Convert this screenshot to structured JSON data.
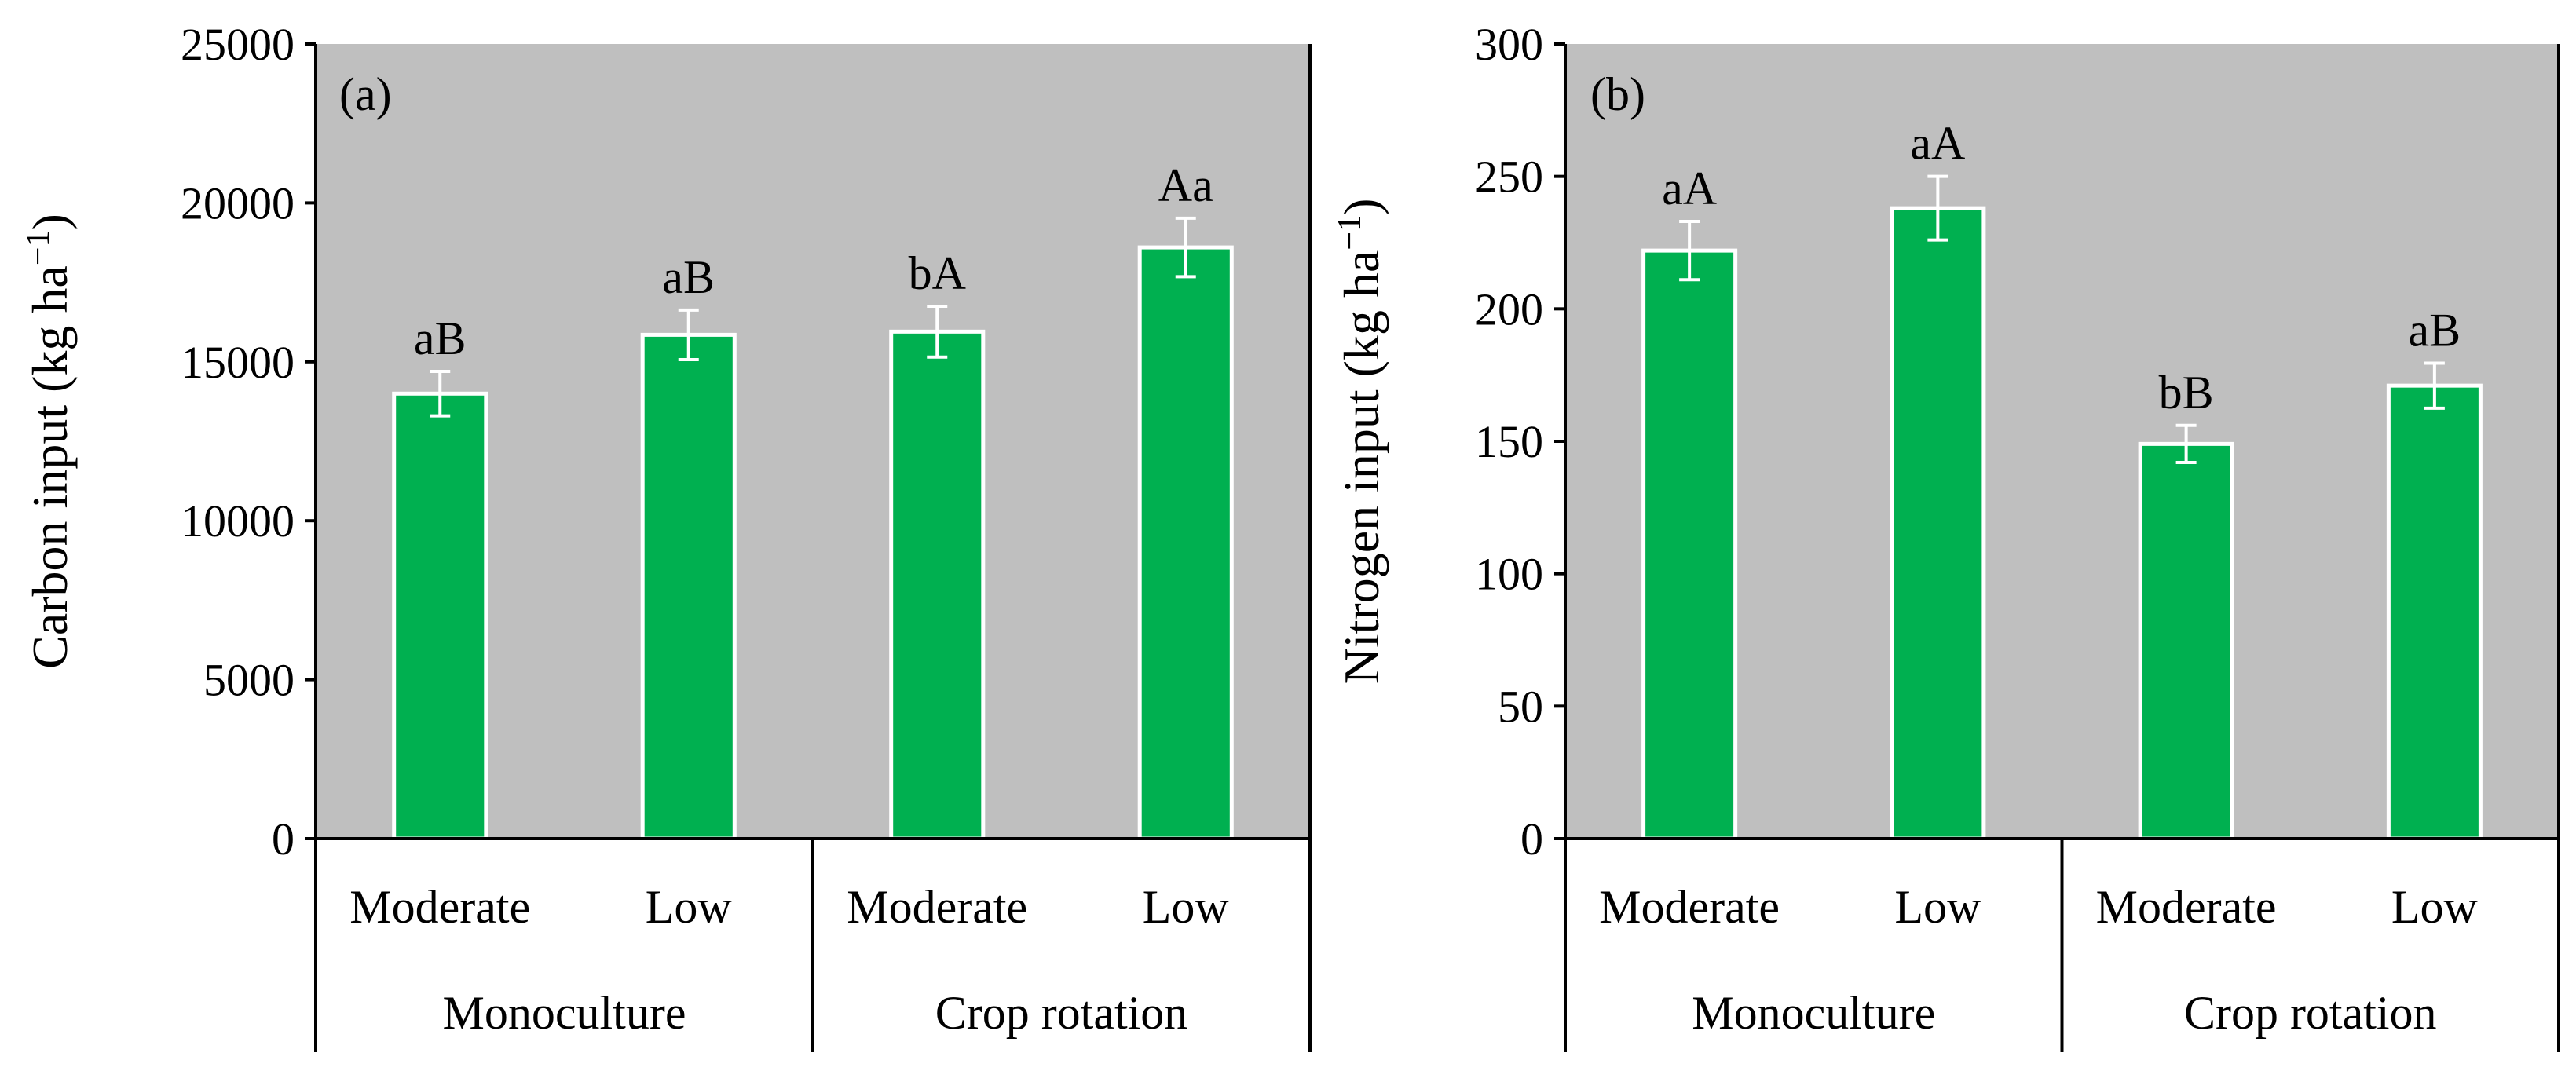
{
  "chart_data": [
    {
      "panel": "(a)",
      "type": "bar",
      "ylabel": "Carbon input (kg ha",
      "ylabel_sup": "−1",
      "ylabel_close": ")",
      "ylim": [
        0,
        25000
      ],
      "yticks": [
        0,
        5000,
        10000,
        15000,
        20000,
        25000
      ],
      "groups": [
        {
          "name": "Monoculture",
          "categories": [
            "Moderate",
            "Low"
          ]
        },
        {
          "name": "Crop rotation",
          "categories": [
            "Moderate",
            "Low"
          ]
        }
      ],
      "values": [
        14000,
        15850,
        15950,
        18600
      ],
      "errors": [
        700,
        780,
        800,
        920
      ],
      "letters": [
        "aB",
        "aB",
        "bA",
        "Aa"
      ],
      "grid": false,
      "plot_bg": "#bfbfbf",
      "bar_color": "#00b050"
    },
    {
      "panel": "(b)",
      "type": "bar",
      "ylabel": "Nitrogen input (kg ha",
      "ylabel_sup": "−1",
      "ylabel_close": ")",
      "ylim": [
        0,
        300
      ],
      "yticks": [
        0,
        50,
        100,
        150,
        200,
        250,
        300
      ],
      "groups": [
        {
          "name": "Monoculture",
          "categories": [
            "Moderate",
            "Low"
          ]
        },
        {
          "name": "Crop rotation",
          "categories": [
            "Moderate",
            "Low"
          ]
        }
      ],
      "values": [
        222,
        238,
        149,
        171
      ],
      "errors": [
        11,
        12,
        7,
        8.5
      ],
      "letters": [
        "aA",
        "aA",
        "bB",
        "aB"
      ],
      "grid": false,
      "plot_bg": "#bfbfbf",
      "bar_color": "#00b050"
    }
  ]
}
